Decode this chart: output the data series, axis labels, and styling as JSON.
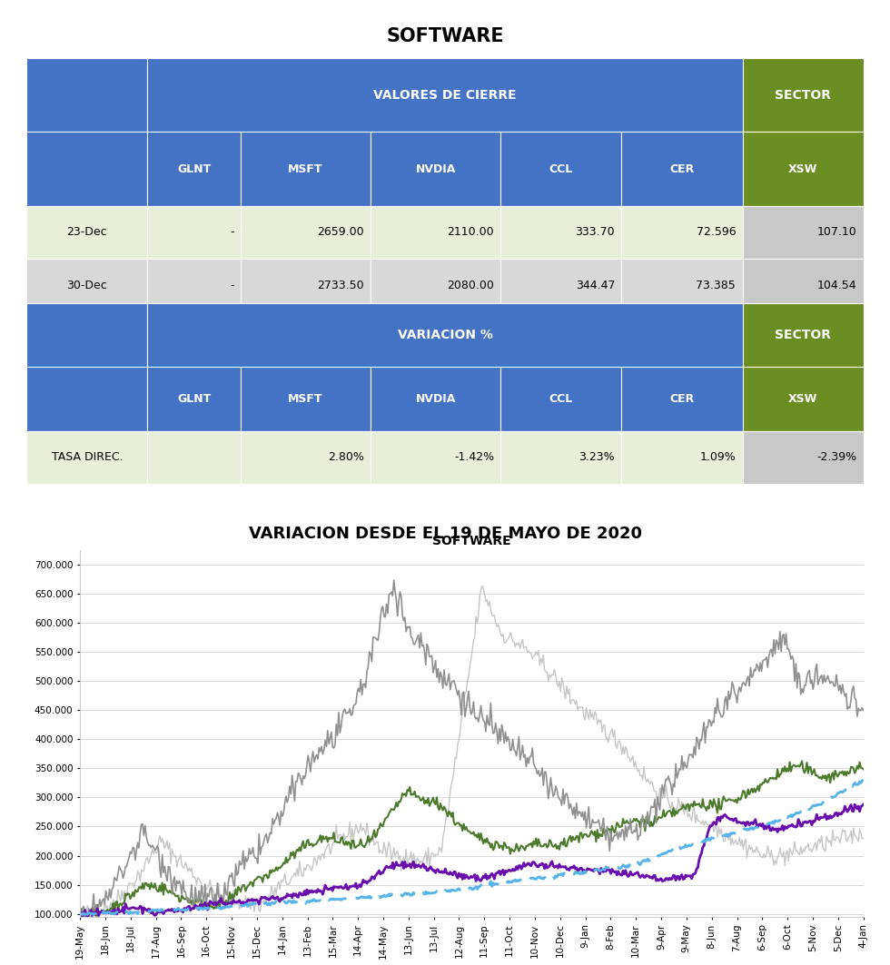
{
  "title": "SOFTWARE",
  "table1_header_main": "VALORES DE CIERRE",
  "table1_cols": [
    "",
    "GLNT",
    "MSFT",
    "NVDIA",
    "CCL",
    "CER",
    "SECTOR\nXSW"
  ],
  "table1_rows": [
    [
      "23-Dec",
      "-",
      "2659.00",
      "2110.00",
      "333.70",
      "72.596",
      "107.10"
    ],
    [
      "30-Dec",
      "-",
      "2733.50",
      "2080.00",
      "344.47",
      "73.385",
      "104.54"
    ]
  ],
  "table2_header_main": "VARIACION %",
  "table2_rows": [
    [
      "TASA DIREC.",
      "",
      "2.80%",
      "-1.42%",
      "3.23%",
      "1.09%",
      "-2.39%"
    ]
  ],
  "chart_title": "SOFTWARE",
  "chart_subtitle": "VARIACION DESDE EL 19 DE MAYO DE 2020",
  "header_bg": "#4472C4",
  "header_fg": "#FFFFFF",
  "sector_bg": "#6B8E23",
  "sector_fg": "#FFFFFF",
  "row_bg_light": "#E8EFD8",
  "row_bg_alt": "#D8D8D8",
  "sector_data_bg": "#C8C8C8",
  "x_labels": [
    "19-May",
    "18-Jun",
    "18-Jul",
    "17-Aug",
    "16-Sep",
    "16-Oct",
    "15-Nov",
    "15-Dec",
    "14-Jan",
    "13-Feb",
    "15-Mar",
    "14-Apr",
    "14-May",
    "13-Jun",
    "13-Jul",
    "12-Aug",
    "11-Sep",
    "11-Oct",
    "10-Nov",
    "10-Dec",
    "9-Jan",
    "8-Feb",
    "10-Mar",
    "9-Apr",
    "9-May",
    "8-Jun",
    "7-Aug",
    "6-Sep",
    "6-Oct",
    "5-Nov",
    "5-Dec",
    "4-Jan"
  ],
  "yticks": [
    100000,
    150000,
    200000,
    250000,
    300000,
    350000,
    400000,
    450000,
    500000,
    550000,
    600000,
    650000,
    700000
  ],
  "ytick_labels": [
    "100.000",
    "150.000",
    "200.000",
    "250.000",
    "300.000",
    "350.000",
    "400.000",
    "450.000",
    "500.000",
    "550.000",
    "600.000",
    "650.000",
    "700.000"
  ],
  "line_colors": {
    "GLNT": "#C0C0C0",
    "MSFT": "#4B7A2B",
    "NVDIA": "#909090",
    "CCL": "#6A0DAD",
    "CER": "#56B4E9"
  },
  "line_widths": {
    "GLNT": 1.0,
    "MSFT": 1.5,
    "NVDIA": 1.2,
    "CCL": 2.0,
    "CER": 2.0
  }
}
